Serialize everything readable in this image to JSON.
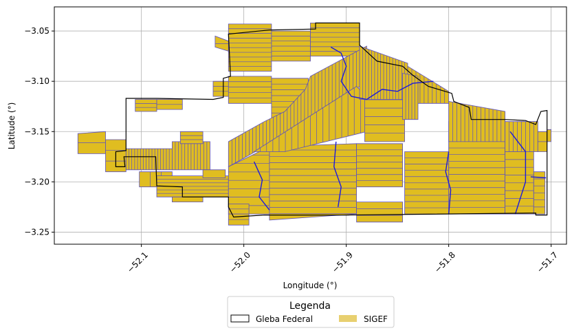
{
  "chart_data": {
    "type": "map",
    "xlabel": "Longitude (°)",
    "ylabel": "Latitude (°)",
    "xlim": [
      -52.185,
      -51.685
    ],
    "ylim": [
      -3.262,
      -3.026
    ],
    "x_ticks": [
      {
        "value": -52.1,
        "label": "−52.1"
      },
      {
        "value": -52.0,
        "label": "−52.0"
      },
      {
        "value": -51.9,
        "label": "−51.9"
      },
      {
        "value": -51.8,
        "label": "−51.8"
      },
      {
        "value": -51.7,
        "label": "−51.7"
      }
    ],
    "y_ticks": [
      {
        "value": -3.05,
        "label": "−3.05"
      },
      {
        "value": -3.1,
        "label": "−3.10"
      },
      {
        "value": -3.15,
        "label": "−3.15"
      },
      {
        "value": -3.2,
        "label": "−3.20"
      },
      {
        "value": -3.25,
        "label": "−3.25"
      }
    ],
    "grid": true,
    "legend": {
      "title": "Legenda",
      "placement": "bottom-center",
      "entries": [
        {
          "label": "Gleba Federal",
          "style": "outline",
          "color": "#000000"
        },
        {
          "label": "SIGEF",
          "style": "fill",
          "color": "#e8d070"
        }
      ]
    },
    "colors": {
      "parcel_fill": "#e0bd20",
      "parcel_edge": "#5a4fc0",
      "boundary": "#000000",
      "river": "#1a1adc"
    },
    "gleba_boundary": [
      [
        -52.115,
        -3.117
      ],
      [
        -52.085,
        -3.117
      ],
      [
        -52.03,
        -3.118
      ],
      [
        -52.02,
        -3.116
      ],
      [
        -52.02,
        -3.097
      ],
      [
        -52.013,
        -3.095
      ],
      [
        -52.015,
        -3.053
      ],
      [
        -51.975,
        -3.049
      ],
      [
        -51.93,
        -3.048
      ],
      [
        -51.93,
        -3.042
      ],
      [
        -51.887,
        -3.042
      ],
      [
        -51.887,
        -3.064
      ],
      [
        -51.87,
        -3.08
      ],
      [
        -51.845,
        -3.085
      ],
      [
        -51.835,
        -3.094
      ],
      [
        -51.82,
        -3.105
      ],
      [
        -51.797,
        -3.112
      ],
      [
        -51.795,
        -3.12
      ],
      [
        -51.78,
        -3.126
      ],
      [
        -51.778,
        -3.138
      ],
      [
        -51.745,
        -3.138
      ],
      [
        -51.725,
        -3.139
      ],
      [
        -51.715,
        -3.143
      ],
      [
        -51.71,
        -3.13
      ],
      [
        -51.704,
        -3.129
      ],
      [
        -51.704,
        -3.233
      ],
      [
        -51.715,
        -3.233
      ],
      [
        -51.715,
        -3.231
      ],
      [
        -51.898,
        -3.233
      ],
      [
        -51.98,
        -3.233
      ],
      [
        -52.01,
        -3.235
      ],
      [
        -52.015,
        -3.225
      ],
      [
        -52.015,
        -3.215
      ],
      [
        -52.06,
        -3.215
      ],
      [
        -52.06,
        -3.205
      ],
      [
        -52.085,
        -3.204
      ],
      [
        -52.086,
        -3.175
      ],
      [
        -52.117,
        -3.175
      ],
      [
        -52.116,
        -3.185
      ],
      [
        -52.125,
        -3.185
      ],
      [
        -52.125,
        -3.17
      ],
      [
        -52.115,
        -3.169
      ]
    ],
    "parcel_blocks": [
      {
        "polygon": [
          [
            -52.162,
            -3.152
          ],
          [
            -52.135,
            -3.15
          ],
          [
            -52.135,
            -3.172
          ],
          [
            -52.162,
            -3.172
          ]
        ],
        "divisions": 2,
        "dir": "h"
      },
      {
        "polygon": [
          [
            -52.135,
            -3.158
          ],
          [
            -52.115,
            -3.158
          ],
          [
            -52.115,
            -3.19
          ],
          [
            -52.135,
            -3.19
          ]
        ],
        "divisions": 3,
        "dir": "h"
      },
      {
        "polygon": [
          [
            -52.115,
            -3.167
          ],
          [
            -52.07,
            -3.167
          ],
          [
            -52.07,
            -3.188
          ],
          [
            -52.115,
            -3.188
          ]
        ],
        "divisions": 16,
        "dir": "v"
      },
      {
        "polygon": [
          [
            -52.102,
            -3.19
          ],
          [
            -52.07,
            -3.19
          ],
          [
            -52.07,
            -3.205
          ],
          [
            -52.102,
            -3.205
          ]
        ],
        "divisions": 3,
        "dir": "v"
      },
      {
        "polygon": [
          [
            -52.07,
            -3.16
          ],
          [
            -52.033,
            -3.16
          ],
          [
            -52.033,
            -3.188
          ],
          [
            -52.07,
            -3.188
          ]
        ],
        "divisions": 12,
        "dir": "v"
      },
      {
        "polygon": [
          [
            -52.106,
            -3.118
          ],
          [
            -52.085,
            -3.118
          ],
          [
            -52.085,
            -3.13
          ],
          [
            -52.106,
            -3.13
          ]
        ],
        "divisions": 3,
        "dir": "h"
      },
      {
        "polygon": [
          [
            -52.085,
            -3.118
          ],
          [
            -52.06,
            -3.118
          ],
          [
            -52.06,
            -3.128
          ],
          [
            -52.085,
            -3.128
          ]
        ],
        "divisions": 2,
        "dir": "h"
      },
      {
        "polygon": [
          [
            -52.062,
            -3.15
          ],
          [
            -52.04,
            -3.15
          ],
          [
            -52.04,
            -3.162
          ],
          [
            -52.062,
            -3.162
          ]
        ],
        "divisions": 3,
        "dir": "h"
      },
      {
        "polygon": [
          [
            -52.085,
            -3.194
          ],
          [
            -52.015,
            -3.194
          ],
          [
            -52.015,
            -3.215
          ],
          [
            -52.085,
            -3.215
          ]
        ],
        "divisions": 6,
        "dir": "h"
      },
      {
        "polygon": [
          [
            -52.07,
            -3.215
          ],
          [
            -52.04,
            -3.215
          ],
          [
            -52.04,
            -3.22
          ],
          [
            -52.07,
            -3.22
          ]
        ],
        "divisions": 1,
        "dir": "h"
      },
      {
        "polygon": [
          [
            -52.04,
            -3.188
          ],
          [
            -52.018,
            -3.188
          ],
          [
            -52.018,
            -3.196
          ],
          [
            -52.04,
            -3.196
          ]
        ],
        "divisions": 1,
        "dir": "h"
      },
      {
        "polygon": [
          [
            -52.03,
            -3.1
          ],
          [
            -52.013,
            -3.1
          ],
          [
            -52.013,
            -3.115
          ],
          [
            -52.03,
            -3.115
          ]
        ],
        "divisions": 3,
        "dir": "h"
      },
      {
        "polygon": [
          [
            -52.015,
            -3.043
          ],
          [
            -51.973,
            -3.043
          ],
          [
            -51.973,
            -3.09
          ],
          [
            -52.015,
            -3.09
          ]
        ],
        "divisions": 10,
        "dir": "h"
      },
      {
        "polygon": [
          [
            -51.973,
            -3.05
          ],
          [
            -51.935,
            -3.05
          ],
          [
            -51.935,
            -3.08
          ],
          [
            -51.973,
            -3.08
          ]
        ],
        "divisions": 6,
        "dir": "h"
      },
      {
        "polygon": [
          [
            -51.935,
            -3.042
          ],
          [
            -51.887,
            -3.042
          ],
          [
            -51.887,
            -3.075
          ],
          [
            -51.935,
            -3.075
          ]
        ],
        "divisions": 7,
        "dir": "h"
      },
      {
        "polygon": [
          [
            -52.028,
            -3.055
          ],
          [
            -52.015,
            -3.06
          ],
          [
            -52.015,
            -3.07
          ],
          [
            -52.028,
            -3.066
          ]
        ],
        "divisions": 2,
        "dir": "h"
      },
      {
        "polygon": [
          [
            -52.015,
            -3.095
          ],
          [
            -51.973,
            -3.095
          ],
          [
            -51.973,
            -3.122
          ],
          [
            -52.015,
            -3.122
          ]
        ],
        "divisions": 5,
        "dir": "h"
      },
      {
        "polygon": [
          [
            -51.973,
            -3.097
          ],
          [
            -51.937,
            -3.097
          ],
          [
            -51.937,
            -3.143
          ],
          [
            -51.973,
            -3.143
          ]
        ],
        "divisions": 8,
        "dir": "h"
      },
      {
        "polygon": [
          [
            -52.015,
            -3.16
          ],
          [
            -51.98,
            -3.14
          ],
          [
            -51.96,
            -3.13
          ],
          [
            -51.94,
            -3.108
          ],
          [
            -51.935,
            -3.095
          ],
          [
            -51.88,
            -3.065
          ],
          [
            -51.88,
            -3.1
          ],
          [
            -51.94,
            -3.145
          ],
          [
            -51.98,
            -3.165
          ],
          [
            -52.015,
            -3.185
          ]
        ],
        "divisions": 40,
        "dir": "v"
      },
      {
        "polygon": [
          [
            -52.015,
            -3.185
          ],
          [
            -51.975,
            -3.165
          ],
          [
            -51.975,
            -3.232
          ],
          [
            -52.015,
            -3.232
          ]
        ],
        "divisions": 8,
        "dir": "h"
      },
      {
        "polygon": [
          [
            -51.975,
            -3.165
          ],
          [
            -51.89,
            -3.162
          ],
          [
            -51.89,
            -3.232
          ],
          [
            -51.975,
            -3.238
          ]
        ],
        "divisions": 12,
        "dir": "h"
      },
      {
        "polygon": [
          [
            -51.99,
            -3.17
          ],
          [
            -51.89,
            -3.105
          ],
          [
            -51.88,
            -3.115
          ],
          [
            -51.88,
            -3.15
          ],
          [
            -51.96,
            -3.17
          ]
        ],
        "divisions": 18,
        "dir": "v"
      },
      {
        "polygon": [
          [
            -51.89,
            -3.162
          ],
          [
            -51.845,
            -3.162
          ],
          [
            -51.845,
            -3.205
          ],
          [
            -51.89,
            -3.205
          ]
        ],
        "divisions": 7,
        "dir": "h"
      },
      {
        "polygon": [
          [
            -51.89,
            -3.22
          ],
          [
            -51.845,
            -3.22
          ],
          [
            -51.845,
            -3.24
          ],
          [
            -51.89,
            -3.24
          ]
        ],
        "divisions": 3,
        "dir": "h"
      },
      {
        "polygon": [
          [
            -51.882,
            -3.11
          ],
          [
            -51.843,
            -3.11
          ],
          [
            -51.843,
            -3.16
          ],
          [
            -51.882,
            -3.16
          ]
        ],
        "divisions": 6,
        "dir": "h"
      },
      {
        "polygon": [
          [
            -51.887,
            -3.065
          ],
          [
            -51.84,
            -3.082
          ],
          [
            -51.84,
            -3.118
          ],
          [
            -51.887,
            -3.118
          ]
        ],
        "divisions": 16,
        "dir": "v"
      },
      {
        "polygon": [
          [
            -51.84,
            -3.085
          ],
          [
            -51.8,
            -3.11
          ],
          [
            -51.8,
            -3.122
          ],
          [
            -51.84,
            -3.122
          ]
        ],
        "divisions": 10,
        "dir": "v"
      },
      {
        "polygon": [
          [
            -51.843,
            -3.17
          ],
          [
            -51.8,
            -3.17
          ],
          [
            -51.8,
            -3.232
          ],
          [
            -51.843,
            -3.232
          ]
        ],
        "divisions": 10,
        "dir": "h"
      },
      {
        "polygon": [
          [
            -51.8,
            -3.14
          ],
          [
            -51.745,
            -3.14
          ],
          [
            -51.745,
            -3.232
          ],
          [
            -51.8,
            -3.232
          ]
        ],
        "divisions": 14,
        "dir": "h"
      },
      {
        "polygon": [
          [
            -51.8,
            -3.12
          ],
          [
            -51.745,
            -3.13
          ],
          [
            -51.745,
            -3.16
          ],
          [
            -51.8,
            -3.16
          ]
        ],
        "divisions": 14,
        "dir": "v"
      },
      {
        "polygon": [
          [
            -51.745,
            -3.14
          ],
          [
            -51.713,
            -3.14
          ],
          [
            -51.713,
            -3.17
          ],
          [
            -51.745,
            -3.17
          ]
        ],
        "divisions": 8,
        "dir": "v"
      },
      {
        "polygon": [
          [
            -51.745,
            -3.17
          ],
          [
            -51.717,
            -3.17
          ],
          [
            -51.717,
            -3.232
          ],
          [
            -51.745,
            -3.232
          ]
        ],
        "divisions": 8,
        "dir": "h"
      },
      {
        "polygon": [
          [
            -51.717,
            -3.19
          ],
          [
            -51.706,
            -3.19
          ],
          [
            -51.706,
            -3.232
          ],
          [
            -51.717,
            -3.232
          ]
        ],
        "divisions": 6,
        "dir": "h"
      },
      {
        "polygon": [
          [
            -51.713,
            -3.15
          ],
          [
            -51.704,
            -3.15
          ],
          [
            -51.704,
            -3.17
          ],
          [
            -51.713,
            -3.17
          ]
        ],
        "divisions": 2,
        "dir": "h"
      },
      {
        "polygon": [
          [
            -51.704,
            -3.148
          ],
          [
            -51.7,
            -3.148
          ],
          [
            -51.7,
            -3.16
          ],
          [
            -51.704,
            -3.16
          ]
        ],
        "divisions": 1,
        "dir": "h"
      },
      {
        "polygon": [
          [
            -51.845,
            -3.092
          ],
          [
            -51.83,
            -3.095
          ],
          [
            -51.83,
            -3.138
          ],
          [
            -51.845,
            -3.138
          ]
        ],
        "divisions": 5,
        "dir": "v"
      },
      {
        "polygon": [
          [
            -52.015,
            -3.222
          ],
          [
            -51.995,
            -3.222
          ],
          [
            -51.995,
            -3.232
          ],
          [
            -52.015,
            -3.232
          ]
        ],
        "divisions": 2,
        "dir": "h"
      },
      {
        "polygon": [
          [
            -52.015,
            -3.232
          ],
          [
            -51.995,
            -3.232
          ],
          [
            -51.995,
            -3.243
          ],
          [
            -52.015,
            -3.243
          ]
        ],
        "divisions": 2,
        "dir": "h"
      }
    ],
    "rivers": [
      [
        [
          -51.915,
          -3.066
        ],
        [
          -51.905,
          -3.072
        ],
        [
          -51.9,
          -3.085
        ],
        [
          -51.905,
          -3.1
        ],
        [
          -51.895,
          -3.115
        ],
        [
          -51.88,
          -3.118
        ],
        [
          -51.865,
          -3.108
        ],
        [
          -51.85,
          -3.11
        ],
        [
          -51.835,
          -3.102
        ],
        [
          -51.815,
          -3.1
        ]
      ],
      [
        [
          -51.99,
          -3.18
        ],
        [
          -51.982,
          -3.198
        ],
        [
          -51.985,
          -3.215
        ],
        [
          -51.975,
          -3.228
        ]
      ],
      [
        [
          -51.91,
          -3.16
        ],
        [
          -51.912,
          -3.185
        ],
        [
          -51.905,
          -3.205
        ],
        [
          -51.908,
          -3.225
        ]
      ],
      [
        [
          -51.8,
          -3.17
        ],
        [
          -51.803,
          -3.19
        ],
        [
          -51.798,
          -3.208
        ],
        [
          -51.8,
          -3.232
        ]
      ],
      [
        [
          -51.74,
          -3.15
        ],
        [
          -51.725,
          -3.17
        ],
        [
          -51.725,
          -3.2
        ],
        [
          -51.735,
          -3.232
        ]
      ],
      [
        [
          -51.72,
          -3.195
        ],
        [
          -51.705,
          -3.196
        ]
      ]
    ]
  }
}
